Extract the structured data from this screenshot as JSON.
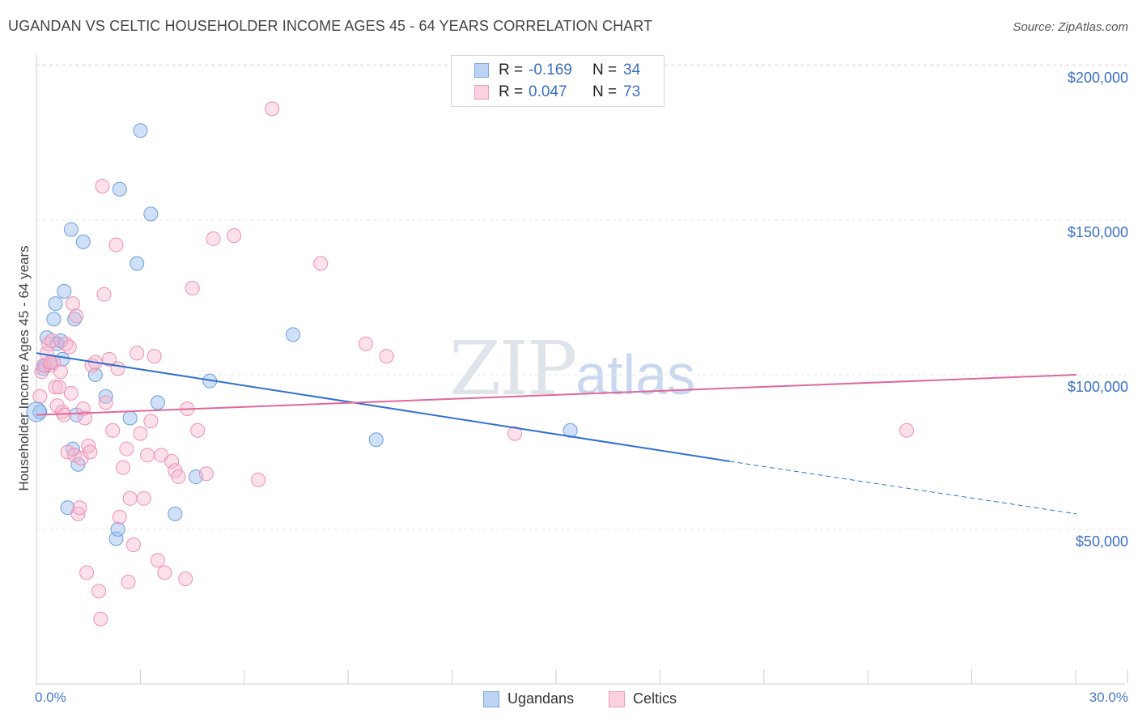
{
  "chart_data": {
    "type": "scatter",
    "title": "UGANDAN VS CELTIC HOUSEHOLDER INCOME AGES 45 - 64 YEARS CORRELATION CHART",
    "source": "Source: ZipAtlas.com",
    "xlabel": "",
    "ylabel": "Householder Income Ages 45 - 64 years",
    "xlim": [
      0,
      30
    ],
    "ylim": [
      0,
      210000
    ],
    "x_tick_labels": [
      "0.0%",
      "30.0%"
    ],
    "y_ticks": [
      50000,
      100000,
      150000,
      200000
    ],
    "y_tick_labels": [
      "$50,000",
      "$100,000",
      "$150,000",
      "$200,000"
    ],
    "watermark": {
      "zip": "ZIP",
      "atlas": "atlas"
    },
    "colors": {
      "ugandans": "#7aa6e6",
      "celtics": "#f29ab8",
      "ugandans_line": "#2f6fd1",
      "celtics_line": "#e0679a"
    },
    "legend": {
      "rows": [
        {
          "r_label": "R =",
          "r_value": "-0.169",
          "n_label": "N =",
          "n_value": "34"
        },
        {
          "r_label": "R =",
          "r_value": "0.047",
          "n_label": "N =",
          "n_value": "73"
        }
      ],
      "bottom": [
        "Ugandans",
        "Celtics"
      ]
    },
    "series": [
      {
        "name": "Ugandans",
        "trend": {
          "x0": 0,
          "y0": 107000,
          "x1": 20,
          "y1": 72000,
          "dash_to_x": 30,
          "dash_to_y": 55000
        },
        "points": [
          [
            0.1,
            88000
          ],
          [
            0.2,
            102000
          ],
          [
            0.3,
            112000
          ],
          [
            0.4,
            104000
          ],
          [
            0.5,
            118000
          ],
          [
            0.55,
            123000
          ],
          [
            0.6,
            110000
          ],
          [
            0.7,
            111000
          ],
          [
            0.75,
            105000
          ],
          [
            0.8,
            127000
          ],
          [
            0.9,
            57000
          ],
          [
            1.0,
            147000
          ],
          [
            1.05,
            76000
          ],
          [
            1.1,
            118000
          ],
          [
            1.15,
            87000
          ],
          [
            1.2,
            71000
          ],
          [
            1.35,
            143000
          ],
          [
            1.7,
            100000
          ],
          [
            2.0,
            93000
          ],
          [
            2.3,
            47000
          ],
          [
            2.35,
            50000
          ],
          [
            2.4,
            160000
          ],
          [
            2.7,
            86000
          ],
          [
            2.9,
            136000
          ],
          [
            3.0,
            179000
          ],
          [
            3.3,
            152000
          ],
          [
            3.5,
            91000
          ],
          [
            4.0,
            55000
          ],
          [
            4.6,
            67000
          ],
          [
            5.0,
            98000
          ],
          [
            7.4,
            113000
          ],
          [
            9.8,
            79000
          ],
          [
            15.4,
            82000
          ],
          [
            0.25,
            103000
          ]
        ]
      },
      {
        "name": "Celtics",
        "trend": {
          "x0": 0,
          "y0": 87000,
          "x1": 30,
          "y1": 100000
        },
        "points": [
          [
            0.1,
            93000
          ],
          [
            0.15,
            101000
          ],
          [
            0.2,
            103000
          ],
          [
            0.3,
            107000
          ],
          [
            0.35,
            110000
          ],
          [
            0.4,
            103000
          ],
          [
            0.45,
            111000
          ],
          [
            0.5,
            104000
          ],
          [
            0.55,
            96000
          ],
          [
            0.6,
            90000
          ],
          [
            0.65,
            96000
          ],
          [
            0.7,
            101000
          ],
          [
            0.75,
            88000
          ],
          [
            0.8,
            87000
          ],
          [
            0.85,
            110000
          ],
          [
            0.9,
            75000
          ],
          [
            0.95,
            109000
          ],
          [
            1.0,
            94000
          ],
          [
            1.05,
            123000
          ],
          [
            1.1,
            74000
          ],
          [
            1.15,
            119000
          ],
          [
            1.2,
            55000
          ],
          [
            1.25,
            57000
          ],
          [
            1.3,
            73000
          ],
          [
            1.35,
            89000
          ],
          [
            1.4,
            86000
          ],
          [
            1.45,
            36000
          ],
          [
            1.5,
            77000
          ],
          [
            1.55,
            75000
          ],
          [
            1.6,
            103000
          ],
          [
            1.7,
            104000
          ],
          [
            1.8,
            30000
          ],
          [
            1.85,
            21000
          ],
          [
            1.9,
            161000
          ],
          [
            1.95,
            126000
          ],
          [
            2.0,
            91000
          ],
          [
            2.1,
            105000
          ],
          [
            2.2,
            82000
          ],
          [
            2.3,
            142000
          ],
          [
            2.35,
            102000
          ],
          [
            2.4,
            54000
          ],
          [
            2.5,
            70000
          ],
          [
            2.6,
            76000
          ],
          [
            2.65,
            33000
          ],
          [
            2.7,
            60000
          ],
          [
            2.8,
            45000
          ],
          [
            2.9,
            107000
          ],
          [
            3.0,
            81000
          ],
          [
            3.1,
            60000
          ],
          [
            3.2,
            74000
          ],
          [
            3.3,
            85000
          ],
          [
            3.4,
            106000
          ],
          [
            3.5,
            40000
          ],
          [
            3.6,
            74000
          ],
          [
            3.7,
            36000
          ],
          [
            3.9,
            72000
          ],
          [
            4.0,
            69000
          ],
          [
            4.1,
            67000
          ],
          [
            4.3,
            34000
          ],
          [
            4.35,
            89000
          ],
          [
            4.5,
            128000
          ],
          [
            4.65,
            82000
          ],
          [
            4.9,
            68000
          ],
          [
            5.1,
            144000
          ],
          [
            5.7,
            145000
          ],
          [
            6.4,
            66000
          ],
          [
            6.8,
            186000
          ],
          [
            8.2,
            136000
          ],
          [
            9.5,
            110000
          ],
          [
            10.1,
            106000
          ],
          [
            13.8,
            81000
          ],
          [
            25.1,
            82000
          ],
          [
            0.4,
            104000
          ]
        ]
      }
    ]
  }
}
